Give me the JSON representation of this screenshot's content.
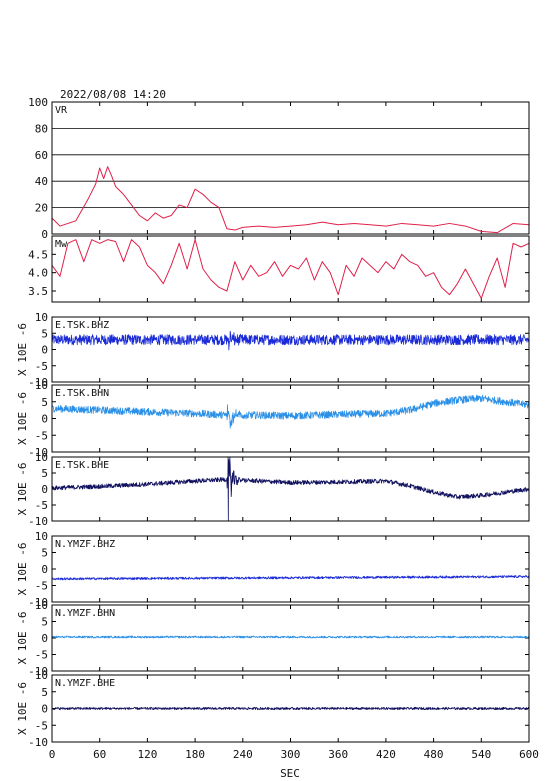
{
  "header": {
    "timestamp": "2022/08/08 14:20"
  },
  "colors": {
    "frame": "#000000",
    "grid": "#000000",
    "vr_line": "#e0204a",
    "mw_line": "#e0204a",
    "bhz": "#1a2ad6",
    "bhn": "#2a8fe6",
    "bhe": "#10105e"
  },
  "chart_data": {
    "type": "line",
    "xlabel": "SEC",
    "xlim": [
      0,
      600
    ],
    "x_ticks": [
      "0",
      "60",
      "120",
      "180",
      "240",
      "300",
      "360",
      "420",
      "480",
      "540",
      "600"
    ],
    "panels": [
      {
        "id": "vr",
        "label": "VR",
        "ylim": [
          0,
          100
        ],
        "y_ticks": [
          "0",
          "20",
          "40",
          "60",
          "80",
          "100"
        ],
        "grid": true,
        "ylabel": "",
        "color": "#e0204a",
        "x": [
          0,
          10,
          20,
          30,
          45,
          55,
          60,
          65,
          70,
          75,
          80,
          90,
          100,
          110,
          120,
          130,
          140,
          150,
          160,
          170,
          180,
          190,
          200,
          210,
          215,
          220,
          230,
          240,
          260,
          280,
          300,
          320,
          340,
          360,
          380,
          400,
          420,
          440,
          460,
          480,
          500,
          520,
          540,
          560,
          580,
          600
        ],
        "values": [
          12,
          6,
          8,
          10,
          26,
          38,
          50,
          42,
          51,
          44,
          36,
          30,
          22,
          14,
          10,
          16,
          12,
          14,
          22,
          20,
          34,
          30,
          24,
          20,
          12,
          4,
          3,
          5,
          6,
          5,
          6,
          7,
          9,
          7,
          8,
          7,
          6,
          8,
          7,
          6,
          8,
          6,
          2,
          1,
          8,
          7
        ]
      },
      {
        "id": "mw",
        "label": "Mw",
        "ylim": [
          3.2,
          5.0
        ],
        "y_ticks": [
          "3.5",
          "4.0",
          "4.5"
        ],
        "grid": false,
        "ylabel": "",
        "color": "#e0204a",
        "x": [
          0,
          10,
          20,
          30,
          40,
          50,
          60,
          70,
          80,
          90,
          100,
          110,
          120,
          130,
          140,
          150,
          160,
          170,
          180,
          190,
          200,
          210,
          220,
          230,
          240,
          250,
          260,
          270,
          280,
          290,
          300,
          310,
          320,
          330,
          340,
          350,
          360,
          370,
          380,
          390,
          400,
          410,
          420,
          430,
          440,
          450,
          460,
          470,
          480,
          490,
          500,
          510,
          520,
          530,
          540,
          550,
          560,
          570,
          580,
          590,
          600
        ],
        "values": [
          4.2,
          3.9,
          4.8,
          4.9,
          4.3,
          4.9,
          4.8,
          4.9,
          4.85,
          4.3,
          4.9,
          4.7,
          4.2,
          4.0,
          3.7,
          4.2,
          4.8,
          4.1,
          4.9,
          4.1,
          3.8,
          3.6,
          3.5,
          4.3,
          3.8,
          4.2,
          3.9,
          4.0,
          4.3,
          3.9,
          4.2,
          4.1,
          4.4,
          3.8,
          4.3,
          4.0,
          3.4,
          4.2,
          3.9,
          4.4,
          4.2,
          4.0,
          4.3,
          4.1,
          4.5,
          4.3,
          4.2,
          3.9,
          4.0,
          3.6,
          3.4,
          3.7,
          4.1,
          3.7,
          3.3,
          3.9,
          4.4,
          3.6,
          4.8,
          4.7,
          4.8
        ]
      },
      {
        "id": "e-tsk-bhz",
        "label": "E.TSK.BHZ",
        "ylim": [
          -10,
          10
        ],
        "y_ticks": [
          "-10",
          "-5",
          "0",
          "5",
          "10"
        ],
        "grid": false,
        "ylabel": "X 10E -6",
        "color": "#1a2ad6",
        "noise": 1.6,
        "event_amp": 3.8,
        "baseline": {
          "x": [
            0,
            600
          ],
          "values": [
            3,
            3
          ]
        }
      },
      {
        "id": "e-tsk-bhn",
        "label": "E.TSK.BHN",
        "ylim": [
          -10,
          10
        ],
        "y_ticks": [
          "-10",
          "-5",
          "0",
          "5",
          "10"
        ],
        "grid": false,
        "ylabel": "X 10E -6",
        "color": "#2a8fe6",
        "noise": 1.1,
        "event_amp": 6.5,
        "baseline": {
          "x": [
            0,
            60,
            120,
            180,
            220,
            260,
            300,
            360,
            420,
            450,
            480,
            510,
            540,
            570,
            600
          ],
          "values": [
            3,
            2.5,
            2,
            1.5,
            1,
            1,
            0.8,
            1.2,
            1.5,
            2.5,
            4.5,
            5.5,
            6,
            5,
            4
          ]
        }
      },
      {
        "id": "e-tsk-bhe",
        "label": "E.TSK.BHE",
        "ylim": [
          -10,
          10
        ],
        "y_ticks": [
          "-10",
          "-5",
          "0",
          "5",
          "10"
        ],
        "grid": false,
        "ylabel": "X 10E -6",
        "color": "#10105e",
        "noise": 0.7,
        "event_amp": 10,
        "baseline": {
          "x": [
            0,
            60,
            120,
            180,
            220,
            260,
            300,
            360,
            420,
            450,
            480,
            510,
            540,
            570,
            600
          ],
          "values": [
            0.3,
            0.8,
            1.5,
            2.5,
            3,
            2.5,
            2,
            2.2,
            2.5,
            1,
            -1,
            -2.5,
            -2,
            -1,
            0
          ]
        }
      },
      {
        "id": "n-ymzf-bhz",
        "label": "N.YMZF.BHZ",
        "ylim": [
          -10,
          10
        ],
        "y_ticks": [
          "-10",
          "-5",
          "0",
          "5",
          "10"
        ],
        "grid": false,
        "ylabel": "X 10E -6",
        "color": "#1a2ad6",
        "noise": 0.35,
        "event_amp": 0,
        "baseline": {
          "x": [
            0,
            600
          ],
          "values": [
            -3,
            -2.3
          ]
        }
      },
      {
        "id": "n-ymzf-bhn",
        "label": "N.YMZF.BHN",
        "ylim": [
          -10,
          10
        ],
        "y_ticks": [
          "-10",
          "-5",
          "0",
          "5",
          "10"
        ],
        "grid": false,
        "ylabel": "X 10E -6",
        "color": "#2a8fe6",
        "noise": 0.3,
        "event_amp": 0,
        "baseline": {
          "x": [
            0,
            600
          ],
          "values": [
            0.3,
            0.3
          ]
        }
      },
      {
        "id": "n-ymzf-bhe",
        "label": "N.YMZF.BHE",
        "ylim": [
          -10,
          10
        ],
        "y_ticks": [
          "-10",
          "-5",
          "0",
          "5",
          "10"
        ],
        "grid": false,
        "ylabel": "X 10E -6",
        "color": "#10105e",
        "noise": 0.35,
        "event_amp": 0,
        "baseline": {
          "x": [
            0,
            600
          ],
          "values": [
            0,
            0
          ]
        }
      }
    ]
  }
}
